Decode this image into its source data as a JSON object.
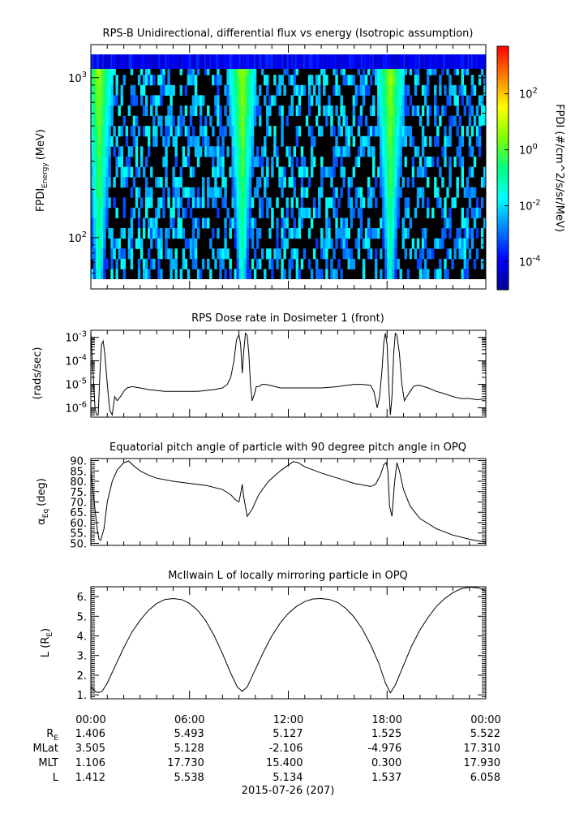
{
  "panels": [
    {
      "title": "RPS-B  Unidirectional, differential flux vs energy (Isotropic assumption)"
    },
    {
      "title": "RPS  Dose rate in Dosimeter 1 (front)"
    },
    {
      "title": "Equatorial pitch angle of particle with 90 degree pitch angle in OPQ"
    },
    {
      "title": "McIlwain L of locally mirroring particle in OPQ"
    }
  ],
  "chart_data": [
    {
      "type": "heatmap",
      "title": "RPS-B  Unidirectional, differential flux vs energy (Isotropic assumption)",
      "ylabel": "FPDI",
      "ylabel_sub": "Energy",
      "ylabel_unit": "(MeV)",
      "yscale": "log",
      "ylim": [
        55,
        1400
      ],
      "yticks": [
        {
          "value": 100,
          "base": "10",
          "exp": "2"
        },
        {
          "value": 1000,
          "base": "10",
          "exp": "3"
        }
      ],
      "xlim_hours": [
        0,
        24
      ],
      "colorbar": {
        "label": "FPDI (#/cm^2/s/sr/MeV)",
        "scale": "log",
        "range": [
          1e-05,
          5000
        ],
        "ticks": [
          {
            "base": "10",
            "exp": "2"
          },
          {
            "base": "10",
            "exp": "0"
          },
          {
            "base": "10",
            "exp": "-2"
          },
          {
            "base": "10",
            "exp": "-4"
          }
        ],
        "colormap": [
          "#00008f",
          "#0000ff",
          "#0080ff",
          "#00ffff",
          "#00ff80",
          "#80ff00",
          "#ffff00",
          "#ff8000",
          "#ff0000"
        ]
      },
      "belt_crossings_hours": [
        0.5,
        9.2,
        18.2
      ],
      "background": "#000000"
    },
    {
      "type": "line",
      "title": "RPS  Dose rate in Dosimeter 1 (front)",
      "ylabel": "(rads/sec)",
      "yscale": "log",
      "ylim": [
        4e-07,
        0.002
      ],
      "yticks": [
        {
          "base": "10",
          "exp": "-3"
        },
        {
          "base": "10",
          "exp": "-4"
        },
        {
          "base": "10",
          "exp": "-5"
        },
        {
          "base": "10",
          "exp": "-6"
        }
      ],
      "xlim_hours": [
        0,
        24
      ],
      "series": [
        {
          "x": [
            0,
            0.1,
            0.25,
            0.35,
            0.45,
            0.55,
            0.65,
            0.75,
            0.85,
            1.0,
            1.15,
            1.3,
            1.45,
            1.6,
            1.8,
            2.0,
            2.2,
            2.5,
            3.0,
            3.5,
            4.0,
            4.5,
            5.0,
            5.5,
            6.0,
            6.5,
            7.0,
            7.5,
            8.0,
            8.3,
            8.5,
            8.7,
            8.85,
            9.0,
            9.1,
            9.2,
            9.3,
            9.4,
            9.5,
            9.6,
            9.7,
            9.8,
            9.95,
            10.05,
            10.2,
            10.4,
            10.6,
            10.9,
            11.2,
            11.5,
            12.0,
            12.5,
            13.0,
            13.5,
            14.0,
            14.5,
            15.0,
            15.5,
            16.0,
            16.5,
            17.0,
            17.2,
            17.4,
            17.55,
            17.7,
            17.8,
            17.9,
            18.0,
            18.1,
            18.2,
            18.3,
            18.4,
            18.5,
            18.6,
            18.75,
            18.9,
            19.05,
            19.2,
            19.4,
            19.6,
            19.8,
            20.0,
            20.5,
            21.0,
            21.5,
            22.0,
            22.5,
            23.0,
            23.5,
            24.0
          ],
          "y": [
            0.0017,
            0.0001,
            1e-06,
            5e-07,
            5e-07,
            3e-05,
            0.0005,
            0.0007,
            0.0002,
            1e-05,
            8e-07,
            5e-07,
            3e-06,
            2e-06,
            3e-06,
            5e-06,
            7e-06,
            8e-06,
            7e-06,
            6e-06,
            5.5e-06,
            5e-06,
            5e-06,
            5e-06,
            5e-06,
            5e-06,
            5.5e-06,
            6e-06,
            7e-06,
            1e-05,
            2e-05,
            0.0001,
            0.0008,
            0.0013,
            0.0005,
            3e-05,
            0.0003,
            0.0015,
            0.0012,
            0.0002,
            1e-05,
            2e-06,
            4e-06,
            8e-06,
            8e-06,
            1e-05,
            1e-05,
            9e-06,
            8e-06,
            7e-06,
            7e-06,
            7e-06,
            7e-06,
            7e-06,
            7e-06,
            7.5e-06,
            8e-06,
            9e-06,
            1e-05,
            1e-05,
            9e-06,
            5e-06,
            1e-06,
            3e-06,
            5e-05,
            0.0006,
            0.0015,
            0.0005,
            1e-05,
            5e-07,
            3e-06,
            0.0002,
            0.0015,
            0.0012,
            0.0002,
            1e-05,
            2e-06,
            3e-06,
            5e-06,
            8e-06,
            9e-06,
            9e-06,
            7e-06,
            5e-06,
            4e-06,
            3e-06,
            2.5e-06,
            2.5e-06,
            2.2e-06,
            2.5e-06
          ]
        }
      ]
    },
    {
      "type": "line",
      "title": "Equatorial pitch angle of particle with 90 degree pitch angle in OPQ",
      "ylabel": "α",
      "ylabel_sub": "Eq",
      "ylabel_unit": "(deg)",
      "ylim": [
        49,
        91
      ],
      "yticks": [
        90,
        85,
        80,
        75,
        70,
        65,
        60,
        55,
        50
      ],
      "ytick_labels": [
        "90.",
        "85.",
        "80.",
        "75.",
        "70.",
        "65.",
        "60.",
        "55.",
        "50."
      ],
      "xlim_hours": [
        0,
        24
      ],
      "series": [
        {
          "x": [
            0,
            0.2,
            0.4,
            0.5,
            0.6,
            0.8,
            1.0,
            1.3,
            1.6,
            2.0,
            2.3,
            2.6,
            3.0,
            3.5,
            4.0,
            5.0,
            6.0,
            7.0,
            8.0,
            8.5,
            8.8,
            9.0,
            9.1,
            9.2,
            9.3,
            9.5,
            9.8,
            10.2,
            10.8,
            11.5,
            12.3,
            12.6,
            13.0,
            14.0,
            15.0,
            16.0,
            17.0,
            17.3,
            17.6,
            17.8,
            17.95,
            18.05,
            18.15,
            18.3,
            18.45,
            18.6,
            18.75,
            19.0,
            19.4,
            20.0,
            21.0,
            22.0,
            23.0,
            24.0
          ],
          "y": [
            85,
            70,
            56,
            52,
            51.5,
            57,
            70,
            80,
            85.5,
            89,
            89.8,
            87.5,
            85,
            83,
            81.5,
            80,
            79,
            78,
            76,
            73.5,
            71,
            70,
            74,
            78.5,
            72,
            63,
            66.5,
            73.5,
            80,
            85,
            89.5,
            89,
            87,
            84,
            81.5,
            79,
            77.5,
            78.5,
            83,
            88,
            89,
            85,
            68,
            63,
            79,
            89,
            85,
            76,
            68,
            62,
            57,
            54,
            52,
            50.5
          ]
        }
      ]
    },
    {
      "type": "line",
      "title": "McIlwain L of locally mirroring particle in OPQ",
      "ylabel": "L (R",
      "ylabel_sub": "E",
      "ylabel_tail": ")",
      "ylim": [
        0.8,
        6.5
      ],
      "yticks": [
        6,
        5,
        4,
        3,
        2,
        1
      ],
      "ytick_labels": [
        "6.",
        "5.",
        "4.",
        "3.",
        "2.",
        "1."
      ],
      "xlim_hours": [
        0,
        24
      ],
      "series": [
        {
          "x": [
            0,
            0.3,
            0.5,
            0.7,
            1.0,
            1.5,
            2.0,
            2.5,
            3.0,
            3.5,
            4.0,
            4.5,
            5.0,
            5.5,
            6.0,
            6.5,
            7.0,
            7.5,
            8.0,
            8.5,
            8.9,
            9.2,
            9.5,
            10.0,
            10.5,
            11.0,
            11.5,
            12.0,
            12.5,
            13.0,
            13.5,
            14.0,
            14.5,
            15.0,
            15.5,
            16.0,
            16.5,
            17.0,
            17.5,
            17.9,
            18.2,
            18.5,
            19.0,
            19.5,
            20.0,
            20.5,
            21.0,
            21.5,
            22.0,
            22.5,
            23.0,
            23.5,
            24.0
          ],
          "y": [
            1.4,
            1.15,
            1.12,
            1.2,
            1.6,
            2.5,
            3.4,
            4.2,
            4.8,
            5.3,
            5.65,
            5.85,
            5.9,
            5.85,
            5.65,
            5.3,
            4.75,
            4.0,
            3.1,
            2.1,
            1.4,
            1.18,
            1.4,
            2.3,
            3.2,
            4.0,
            4.65,
            5.15,
            5.5,
            5.75,
            5.88,
            5.9,
            5.85,
            5.7,
            5.4,
            4.95,
            4.35,
            3.55,
            2.6,
            1.6,
            1.1,
            1.5,
            2.5,
            3.5,
            4.3,
            4.95,
            5.5,
            5.9,
            6.2,
            6.4,
            6.48,
            6.45,
            6.3
          ]
        }
      ]
    }
  ],
  "x_axis": {
    "ticks": [
      "00:00",
      "06:00",
      "12:00",
      "18:00",
      "00:00"
    ],
    "ephemeris": [
      {
        "label": "R",
        "sub": "E",
        "values": [
          "1.406",
          "5.493",
          "5.127",
          "1.525",
          "5.522"
        ]
      },
      {
        "label": "MLat",
        "sub": "",
        "values": [
          "3.505",
          "5.128",
          "-2.106",
          "-4.976",
          "17.310"
        ]
      },
      {
        "label": "MLT",
        "sub": "",
        "values": [
          "1.106",
          "17.730",
          "15.400",
          "0.300",
          "17.930"
        ]
      },
      {
        "label": "L",
        "sub": "",
        "values": [
          "1.412",
          "5.538",
          "5.134",
          "1.537",
          "6.058"
        ]
      }
    ],
    "date_label": "2015-07-26 (207)"
  }
}
